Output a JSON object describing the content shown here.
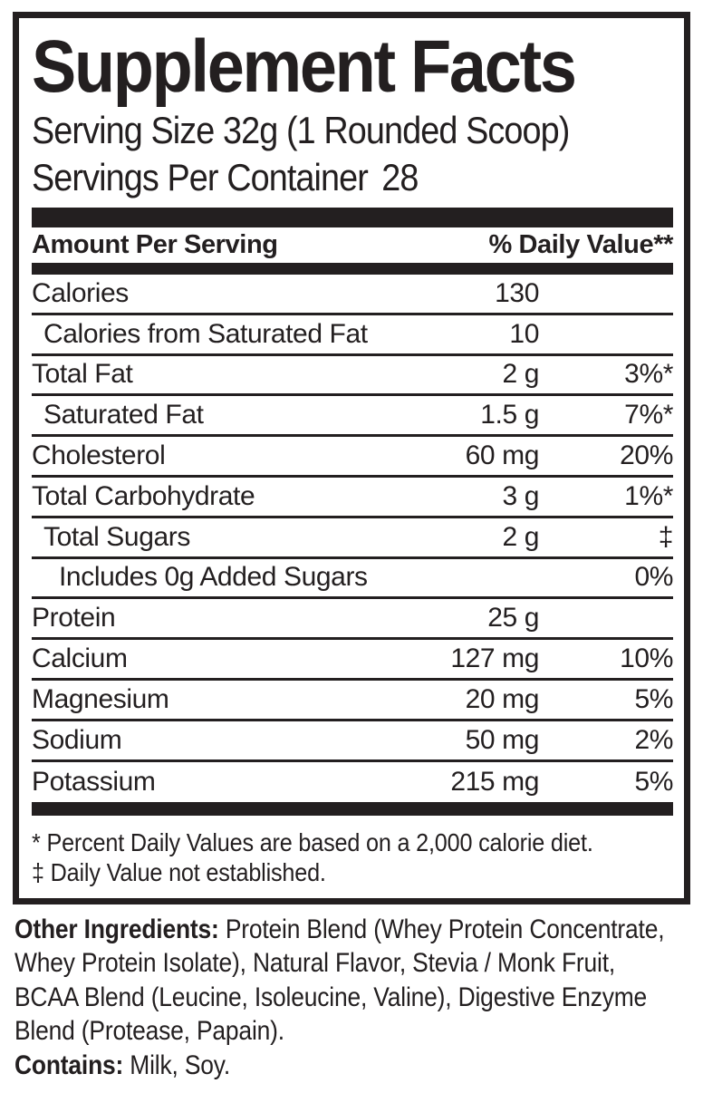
{
  "colors": {
    "ink": "#231f20",
    "background": "#ffffff"
  },
  "panel": {
    "title": "Supplement Facts",
    "serving_size": "Serving Size 32g (1 Rounded Scoop)",
    "servings_per_container": {
      "label": "Servings Per Container",
      "value": "28"
    },
    "columns": {
      "amount_header": "Amount Per Serving",
      "dv_header": "% Daily Value**"
    },
    "rows": [
      {
        "name": "Calories",
        "amount": "130",
        "dv": "",
        "indent": 0
      },
      {
        "name": "Calories from Saturated Fat",
        "amount": "10",
        "dv": "",
        "indent": 1
      },
      {
        "name": "Total Fat",
        "amount": "2 g",
        "dv": "3%*",
        "indent": 0
      },
      {
        "name": "Saturated Fat",
        "amount": "1.5 g",
        "dv": "7%*",
        "indent": 1
      },
      {
        "name": "Cholesterol",
        "amount": "60 mg",
        "dv": "20%",
        "indent": 0
      },
      {
        "name": "Total Carbohydrate",
        "amount": "3 g",
        "dv": "1%*",
        "indent": 0
      },
      {
        "name": "Total Sugars",
        "amount": "2 g",
        "dv": "‡",
        "indent": 1
      },
      {
        "name": "Includes 0g Added Sugars",
        "amount": "",
        "dv": "0%",
        "indent": 2
      },
      {
        "name": "Protein",
        "amount": "25 g",
        "dv": "",
        "indent": 0
      },
      {
        "name": "Calcium",
        "amount": "127 mg",
        "dv": "10%",
        "indent": 0
      },
      {
        "name": "Magnesium",
        "amount": "20 mg",
        "dv": "5%",
        "indent": 0
      },
      {
        "name": "Sodium",
        "amount": "50 mg",
        "dv": "2%",
        "indent": 0
      },
      {
        "name": "Potassium",
        "amount": "215 mg",
        "dv": "5%",
        "indent": 0
      }
    ],
    "footnotes": [
      "* Percent Daily Values are based on a 2,000 calorie diet.",
      "‡ Daily Value not established."
    ]
  },
  "ingredients": {
    "lines": [
      {
        "bold": "Other Ingredients:",
        "text": " Protein Blend (Whey Protein Concentrate,"
      },
      {
        "bold": "",
        "text": "Whey Protein Isolate), Natural Flavor, Stevia / Monk Fruit,"
      },
      {
        "bold": "",
        "text": "BCAA Blend (Leucine, Isoleucine, Valine), Digestive Enzyme"
      },
      {
        "bold": "",
        "text": "Blend (Protease, Papain)."
      },
      {
        "bold": "Contains:",
        "text": " Milk, Soy."
      }
    ]
  }
}
